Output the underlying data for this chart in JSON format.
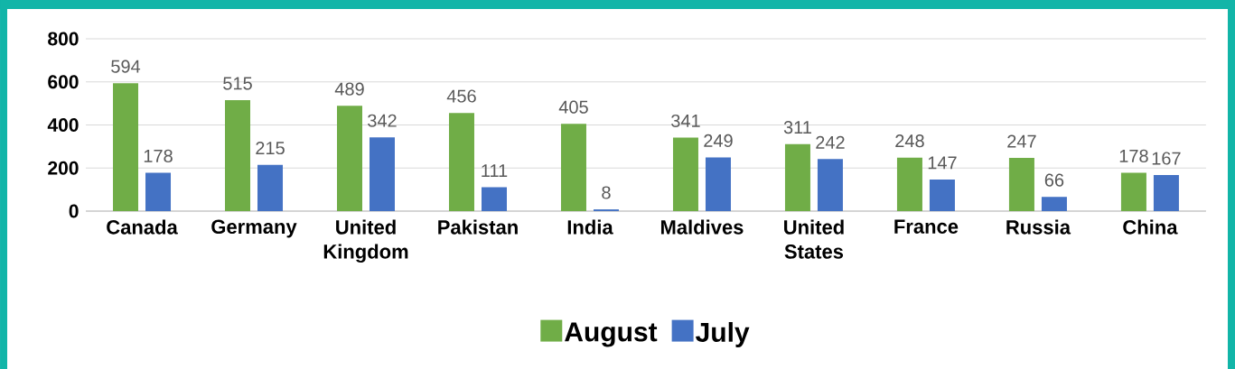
{
  "chart_data": {
    "type": "bar",
    "categories": [
      "Canada",
      "Germany",
      "United Kingdom",
      "Pakistan",
      "India",
      "Maldives",
      "United States",
      "France",
      "Russia",
      "China"
    ],
    "series": [
      {
        "name": "August",
        "color": "#70ad47",
        "values": [
          594,
          515,
          489,
          456,
          405,
          341,
          311,
          248,
          247,
          178
        ]
      },
      {
        "name": "July",
        "color": "#4472c4",
        "values": [
          178,
          215,
          342,
          111,
          8,
          249,
          242,
          147,
          66,
          167
        ]
      }
    ],
    "ylim": [
      0,
      800
    ],
    "yticks": [
      0,
      200,
      400,
      600,
      800
    ],
    "grid": "y",
    "legend": "bottom",
    "data_labels": true
  }
}
